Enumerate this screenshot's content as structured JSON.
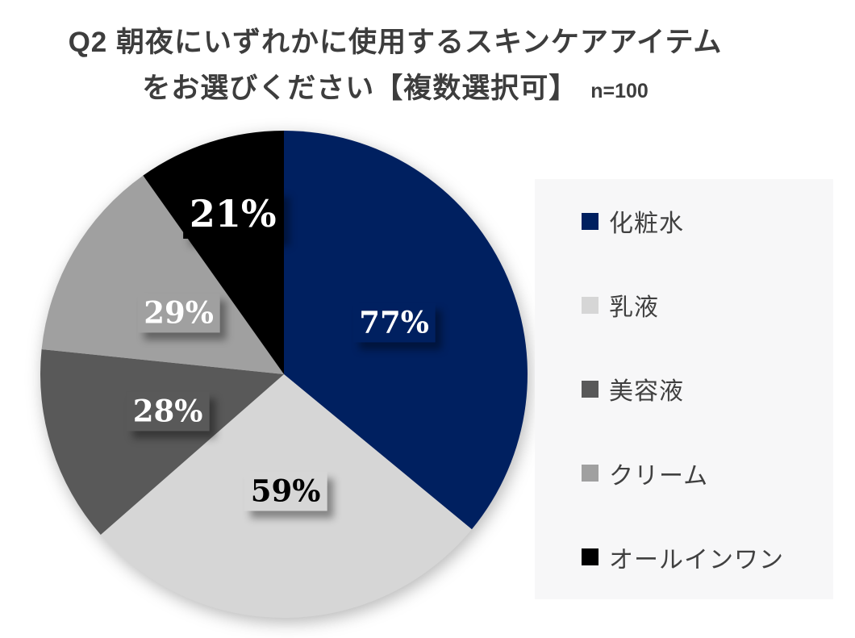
{
  "title": {
    "line1": "Q2 朝夜にいずれかに使用するスキンケアアイテム",
    "line2": "をお選びください【複数選択可】",
    "sample_size": "n=100"
  },
  "chart_data": {
    "type": "pie",
    "title": "Q2 朝夜にいずれかに使用するスキンケアアイテム をお選びください【複数選択可】",
    "sample_size": "n=100",
    "unit": "%",
    "order": "clockwise-from-top",
    "start_angle_deg": 0,
    "legend_position": "right",
    "legend_bg": "#f7f7f8",
    "slices": [
      {
        "label": "化粧水",
        "value": 77,
        "data_label": "77%",
        "color": "#002060",
        "text_color": "#ffffff",
        "label_radius": 0.5,
        "label_font_scale": 1.0
      },
      {
        "label": "乳液",
        "value": 59,
        "data_label": "59%",
        "color": "#d6d6d6",
        "text_color": "#000000",
        "label_radius": 0.48,
        "label_font_scale": 1.0
      },
      {
        "label": "美容液",
        "value": 28,
        "data_label": "28%",
        "color": "#595959",
        "text_color": "#ffffff",
        "label_radius": 0.5,
        "label_font_scale": 1.0
      },
      {
        "label": "クリーム",
        "value": 29,
        "data_label": "29%",
        "color": "#a0a0a0",
        "text_color": "#ffffff",
        "label_radius": 0.5,
        "label_font_scale": 1.0
      },
      {
        "label": "オールインワン",
        "value": 21,
        "data_label": "21%",
        "color": "#000000",
        "text_color": "#ffffff",
        "label_radius": 0.69,
        "label_font_scale": 1.25
      }
    ]
  }
}
